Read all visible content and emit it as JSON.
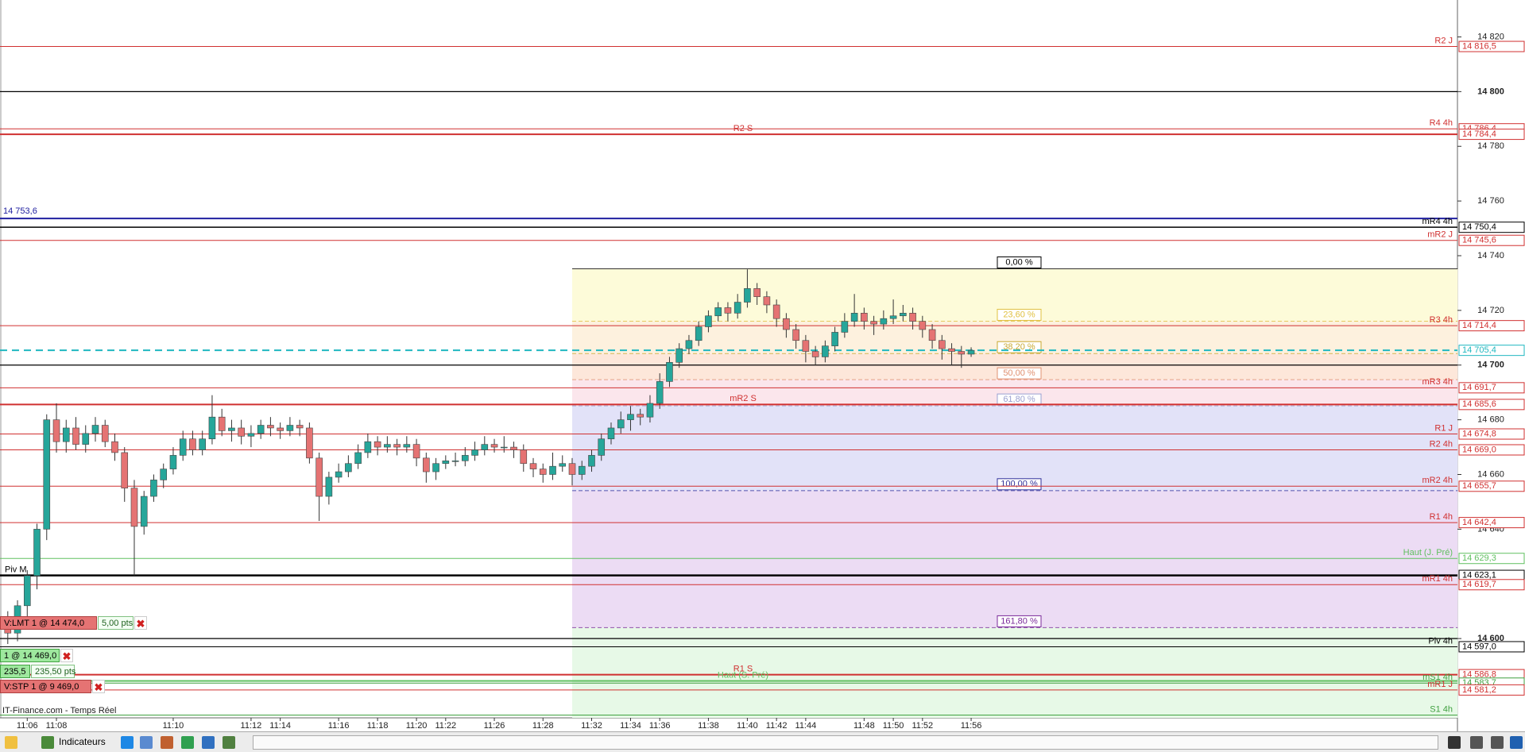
{
  "chart_data": {
    "type": "candlestick",
    "ylim": [
      14571,
      14833.5
    ],
    "yticks": [
      {
        "value": 14820,
        "label": "14 820"
      },
      {
        "value": 14800,
        "label": "14 800",
        "bold": true
      },
      {
        "value": 14780,
        "label": "14 780"
      },
      {
        "value": 14760,
        "label": "14 760"
      },
      {
        "value": 14740,
        "label": "14 740"
      },
      {
        "value": 14720,
        "label": "14 720"
      },
      {
        "value": 14700,
        "label": "14 700",
        "bold": true
      },
      {
        "value": 14680,
        "label": "14 680"
      },
      {
        "value": 14660,
        "label": "14 660"
      },
      {
        "value": 14640,
        "label": "14 640"
      },
      {
        "value": 14600,
        "label": "14 600",
        "bold": true
      }
    ],
    "up_color": "#26a69a",
    "down_color": "#e57373",
    "categories": [
      null,
      null,
      "11:06",
      null,
      null,
      "11:08",
      null,
      null,
      null,
      null,
      null,
      null,
      null,
      null,
      null,
      null,
      null,
      "11:10",
      null,
      null,
      null,
      null,
      null,
      null,
      null,
      "11:12",
      null,
      null,
      "11:14",
      null,
      null,
      null,
      null,
      null,
      "11:16",
      null,
      null,
      null,
      "11:18",
      null,
      null,
      null,
      "11:20",
      null,
      null,
      "11:22",
      null,
      null,
      null,
      null,
      "11:26",
      null,
      null,
      null,
      null,
      "11:28",
      null,
      null,
      null,
      null,
      "11:32",
      null,
      null,
      null,
      "11:34",
      null,
      null,
      "11:36",
      null,
      null,
      null,
      null,
      "11:38",
      null,
      null,
      null,
      "11:40",
      null,
      null,
      "11:42",
      null,
      null,
      "11:44",
      null,
      null,
      null,
      null,
      null,
      "11:48",
      null,
      null,
      "11:50",
      null,
      null,
      "11:52",
      null,
      null,
      null,
      null,
      "11:56"
    ],
    "ohlc": [
      [
        14608,
        14610,
        14598,
        14602
      ],
      [
        14602,
        14614,
        14599,
        14612
      ],
      [
        14612,
        14625,
        14608,
        14623
      ],
      [
        14623,
        14642,
        14618,
        14640
      ],
      [
        14640,
        14682,
        14636,
        14680
      ],
      [
        14680,
        14686,
        14668,
        14672
      ],
      [
        14672,
        14680,
        14668,
        14677
      ],
      [
        14677,
        14681,
        14669,
        14671
      ],
      [
        14671,
        14678,
        14668,
        14675
      ],
      [
        14675,
        14681,
        14672,
        14678
      ],
      [
        14678,
        14680,
        14670,
        14672
      ],
      [
        14672,
        14675,
        14665,
        14668
      ],
      [
        14668,
        14670,
        14650,
        14655
      ],
      [
        14655,
        14658,
        14623,
        14641
      ],
      [
        14641,
        14654,
        14638,
        14652
      ],
      [
        14652,
        14660,
        14650,
        14658
      ],
      [
        14658,
        14664,
        14655,
        14662
      ],
      [
        14662,
        14670,
        14660,
        14667
      ],
      [
        14667,
        14676,
        14665,
        14673
      ],
      [
        14673,
        14676,
        14667,
        14669
      ],
      [
        14669,
        14676,
        14667,
        14673
      ],
      [
        14673,
        14689,
        14671,
        14681
      ],
      [
        14681,
        14684,
        14674,
        14676
      ],
      [
        14676,
        14680,
        14672,
        14677
      ],
      [
        14677,
        14680,
        14671,
        14674
      ],
      [
        14674,
        14678,
        14670,
        14675
      ],
      [
        14675,
        14680,
        14673,
        14678
      ],
      [
        14678,
        14681,
        14674,
        14677
      ],
      [
        14677,
        14679,
        14673,
        14676
      ],
      [
        14676,
        14681,
        14674,
        14678
      ],
      [
        14678,
        14680,
        14674,
        14677
      ],
      [
        14677,
        14679,
        14664,
        14666
      ],
      [
        14666,
        14668,
        14643,
        14652
      ],
      [
        14652,
        14661,
        14649,
        14659
      ],
      [
        14659,
        14664,
        14657,
        14661
      ],
      [
        14661,
        14667,
        14659,
        14664
      ],
      [
        14664,
        14671,
        14662,
        14668
      ],
      [
        14668,
        14675,
        14666,
        14672
      ],
      [
        14672,
        14674,
        14667,
        14670
      ],
      [
        14670,
        14674,
        14668,
        14671
      ],
      [
        14671,
        14673,
        14667,
        14670
      ],
      [
        14670,
        14674,
        14668,
        14671
      ],
      [
        14671,
        14673,
        14663,
        14666
      ],
      [
        14666,
        14668,
        14657,
        14661
      ],
      [
        14661,
        14666,
        14658,
        14664
      ],
      [
        14664,
        14667,
        14662,
        14665
      ],
      [
        14665,
        14668,
        14663,
        14665
      ],
      [
        14665,
        14670,
        14663,
        14667
      ],
      [
        14667,
        14672,
        14665,
        14669
      ],
      [
        14669,
        14674,
        14667,
        14671
      ],
      [
        14671,
        14673,
        14668,
        14670
      ],
      [
        14670,
        14674,
        14668,
        14670
      ],
      [
        14670,
        14672,
        14666,
        14669
      ],
      [
        14669,
        14671,
        14661,
        14664
      ],
      [
        14664,
        14666,
        14659,
        14662
      ],
      [
        14662,
        14664,
        14657,
        14660
      ],
      [
        14660,
        14668,
        14658,
        14663
      ],
      [
        14663,
        14667,
        14661,
        14664
      ],
      [
        14664,
        14666,
        14656,
        14660
      ],
      [
        14660,
        14665,
        14658,
        14663
      ],
      [
        14663,
        14669,
        14661,
        14667
      ],
      [
        14667,
        14675,
        14665,
        14673
      ],
      [
        14673,
        14679,
        14671,
        14677
      ],
      [
        14677,
        14683,
        14675,
        14680
      ],
      [
        14680,
        14685,
        14676,
        14682
      ],
      [
        14682,
        14684,
        14678,
        14681
      ],
      [
        14681,
        14689,
        14679,
        14686
      ],
      [
        14686,
        14697,
        14684,
        14694
      ],
      [
        14694,
        14703,
        14692,
        14701
      ],
      [
        14701,
        14708,
        14699,
        14706
      ],
      [
        14706,
        14711,
        14704,
        14709
      ],
      [
        14709,
        14716,
        14707,
        14714
      ],
      [
        14714,
        14720,
        14712,
        14718
      ],
      [
        14718,
        14723,
        14716,
        14721
      ],
      [
        14721,
        14723,
        14716,
        14719
      ],
      [
        14719,
        14726,
        14717,
        14723
      ],
      [
        14723,
        14735,
        14721,
        14728
      ],
      [
        14728,
        14730,
        14722,
        14725
      ],
      [
        14725,
        14727,
        14719,
        14722
      ],
      [
        14722,
        14724,
        14714,
        14717
      ],
      [
        14717,
        14719,
        14710,
        14713
      ],
      [
        14713,
        14715,
        14706,
        14709
      ],
      [
        14709,
        14711,
        14701,
        14705
      ],
      [
        14705,
        14707,
        14700,
        14703
      ],
      [
        14703,
        14709,
        14701,
        14707
      ],
      [
        14707,
        14714,
        14705,
        14712
      ],
      [
        14712,
        14719,
        14710,
        14716
      ],
      [
        14716,
        14726,
        14714,
        14719
      ],
      [
        14719,
        14721,
        14713,
        14716
      ],
      [
        14716,
        14718,
        14711,
        14715
      ],
      [
        14715,
        14720,
        14713,
        14717
      ],
      [
        14717,
        14724,
        14715,
        14718
      ],
      [
        14718,
        14722,
        14716,
        14719
      ],
      [
        14719,
        14721,
        14713,
        14716
      ],
      [
        14716,
        14718,
        14710,
        14713
      ],
      [
        14713,
        14715,
        14706,
        14709
      ],
      [
        14709,
        14711,
        14702,
        14706
      ],
      [
        14706,
        14708,
        14700,
        14705
      ],
      [
        14705,
        14707,
        14699,
        14704
      ],
      [
        14704,
        14706.5,
        14703,
        14705.4
      ]
    ],
    "fib": {
      "high": 14735.2,
      "low": 14654.1,
      "anchor": 58,
      "levels": [
        {
          "percent": 0,
          "label": "0,00 %",
          "color": "#000000",
          "fill": "#fdfbd9"
        },
        {
          "percent": 23.6,
          "label": "23,60 %",
          "color": "#e0c040",
          "fill": "#fdf1de"
        },
        {
          "percent": 38.2,
          "label": "38,20 %",
          "color": "#c8a830",
          "fill": "#fde7da"
        },
        {
          "percent": 50,
          "label": "50,00 %",
          "color": "#e09070",
          "fill": "#fbe6ec"
        },
        {
          "percent": 61.8,
          "label": "61,80 %",
          "color": "#9aa0d0",
          "fill": "#e2e2f8"
        },
        {
          "percent": 100,
          "label": "100,00 %",
          "color": "#30309a",
          "fill": "#ecdcf4"
        },
        {
          "percent": 161.8,
          "label": "161,80 %",
          "color": "#7a2a9a",
          "fill": "#e7f9e7"
        }
      ]
    },
    "levels": [
      {
        "name": "R2 J",
        "price": 14816.5,
        "price_label": "14 816,5",
        "color": "#d03030",
        "width": 1,
        "name_at": "right"
      },
      {
        "name": "R4 4h",
        "price": 14786.4,
        "price_label": "14 786,4",
        "color": "#d03030",
        "width": 1,
        "name_at": "right"
      },
      {
        "name": "R2 S",
        "price": 14784.4,
        "price_label": "14 784,4",
        "color": "#d03030",
        "width": 2,
        "name_at": "center"
      },
      {
        "price": 14753.6,
        "price_label": "14 753,6",
        "color": "#2020a0",
        "width": 2,
        "name_at": "left"
      },
      {
        "name": "mR4 4h",
        "price": 14750.4,
        "price_label": "14 750,4",
        "color": "#000000",
        "width": 1.5,
        "name_at": "right"
      },
      {
        "name": "mR2 J",
        "price": 14745.6,
        "price_label": "14 745,6",
        "color": "#d03030",
        "width": 1,
        "name_at": "right"
      },
      {
        "name": "R3 4h",
        "price": 14714.4,
        "price_label": "14 714,4",
        "color": "#d03030",
        "width": 1,
        "name_at": "right"
      },
      {
        "price": 14705.4,
        "price_label": "14 705,4",
        "color": "#20b8c0",
        "width": 2,
        "dash": true,
        "name_at": "right"
      },
      {
        "name": "mR3 4h",
        "price": 14691.7,
        "price_label": "14 691,7",
        "color": "#d03030",
        "width": 1,
        "name_at": "right"
      },
      {
        "name": "mR2 S",
        "price": 14685.6,
        "price_label": "14 685,6",
        "color": "#d03030",
        "width": 2,
        "name_at": "center"
      },
      {
        "name": "R1 J",
        "price": 14674.8,
        "price_label": "14 674,8",
        "color": "#d03030",
        "width": 1,
        "name_at": "right"
      },
      {
        "name": "R2 4h",
        "price": 14669.0,
        "price_label": "14 669,0",
        "color": "#d03030",
        "width": 1,
        "name_at": "right"
      },
      {
        "name": "mR2 4h",
        "price": 14655.7,
        "price_label": "14 655,7",
        "color": "#d03030",
        "width": 1,
        "name_at": "right"
      },
      {
        "name": "R1 4h",
        "price": 14642.4,
        "price_label": "14 642,4",
        "color": "#d03030",
        "width": 1,
        "name_at": "right"
      },
      {
        "name": "Haut (J. Pré)",
        "price": 14629.3,
        "price_label": "14 629,3",
        "color": "#60c060",
        "width": 1,
        "name_at": "right"
      },
      {
        "name": "Piv M",
        "price": 14623.1,
        "price_label": "14 623,1",
        "color": "#000000",
        "width": 2.5,
        "name_at": "left"
      },
      {
        "name": "mR1 4h",
        "price": 14619.7,
        "price_label": "14 619,7",
        "color": "#d03030",
        "width": 1,
        "name_at": "right"
      },
      {
        "name": "Piv 4h",
        "price": 14597.0,
        "price_label": "14 597,0",
        "color": "#000000",
        "width": 1,
        "name_at": "right"
      },
      {
        "name": "R1 S",
        "price": 14586.8,
        "price_label": "14 586,8",
        "color": "#d03030",
        "width": 2,
        "name_at": "center"
      },
      {
        "name": "Haut (S. Pré)",
        "price": 14584.5,
        "color": "#60c060",
        "width": 2,
        "name_at": "center"
      },
      {
        "name": "mS1 4h",
        "price": 14583.7,
        "price_label": "14 583,7",
        "color": "#40a040",
        "width": 1,
        "name_at": "right"
      },
      {
        "name": "mR1 J",
        "price": 14581.2,
        "price_label": "14 581,2",
        "color": "#d03030",
        "width": 1,
        "name_at": "right"
      },
      {
        "name": "S1 4h",
        "price": 14572,
        "color": "#40a040",
        "width": 1,
        "name_at": "right"
      }
    ]
  },
  "orders": {
    "limit": "V:LMT  1 @ 14 474,0",
    "limit_pts": "5,00 pts",
    "position": "1 @ 14 469,0",
    "pnl": "235,5",
    "pnl_pts": "235,50 pts",
    "stop": "V:STP  1 @ 9 469,0"
  },
  "footer": "IT-Finance.com - Temps Réel",
  "toolbar": {
    "label": "Indicateurs"
  }
}
